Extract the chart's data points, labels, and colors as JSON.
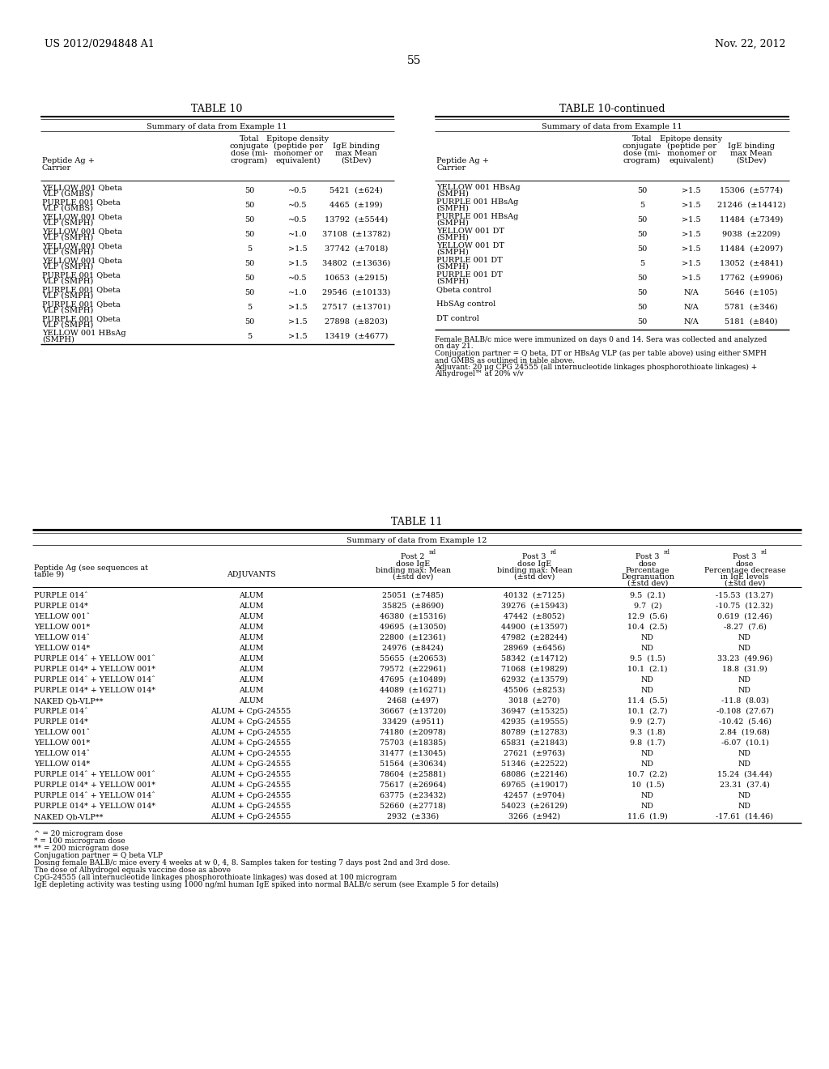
{
  "header_left": "US 2012/0294848 A1",
  "header_right": "Nov. 22, 2012",
  "page_number": "55",
  "table10_title": "TABLE 10",
  "table10cont_title": "TABLE 10-continued",
  "table10_subtitle": "Summary of data from Example 11",
  "table10cont_subtitle": "Summary of data from Example 11",
  "table11_title": "TABLE 11",
  "table11_subtitle": "Summary of data from Example 12",
  "table10_col_headers": [
    [
      "Peptide Ag +",
      "Carrier"
    ],
    [
      "Total",
      "conjugate",
      "dose (mi-",
      "crogram)"
    ],
    [
      "Epitope density",
      "(peptide per",
      "monomer or",
      "equivalent)"
    ],
    [
      "IgE binding",
      "max Mean",
      "(StDev)"
    ]
  ],
  "table10_rows": [
    [
      "YELLOW 001 Qbeta",
      "VLP (GMBS)",
      "50",
      "~0.5",
      "5421  (±624)"
    ],
    [
      "PURPLE 001 Qbeta",
      "VLP (GMBS)",
      "50",
      "~0.5",
      "4465  (±199)"
    ],
    [
      "YELLOW 001 Qbeta",
      "VLP (SMPH)",
      "50",
      "~0.5",
      "13792  (±5544)"
    ],
    [
      "YELLOW 001 Qbeta",
      "VLP (SMPH)",
      "50",
      "~1.0",
      "37108  (±13782)"
    ],
    [
      "YELLOW 001 Qbeta",
      "VLP (SMPH)",
      "5",
      ">1.5",
      "37742  (±7018)"
    ],
    [
      "YELLOW 001 Qbeta",
      "VLP (SMPH)",
      "50",
      ">1.5",
      "34802  (±13636)"
    ],
    [
      "PURPLE 001 Qbeta",
      "VLP (SMPH)",
      "50",
      "~0.5",
      "10653  (±2915)"
    ],
    [
      "PURPLE 001 Qbeta",
      "VLP (SMPH)",
      "50",
      "~1.0",
      "29546  (±10133)"
    ],
    [
      "PURPLE 001 Qbeta",
      "VLP (SMPH)",
      "5",
      ">1.5",
      "27517  (±13701)"
    ],
    [
      "PURPLE 001 Qbeta",
      "VLP (SMPH)",
      "50",
      ">1.5",
      "27898  (±8203)"
    ],
    [
      "YELLOW 001 HBsAg",
      "(SMPH)",
      "5",
      ">1.5",
      "13419  (±4677)"
    ]
  ],
  "table10cont_rows": [
    [
      "YELLOW 001 HBsAg",
      "(SMPH)",
      "50",
      ">1.5",
      "15306  (±5774)"
    ],
    [
      "PURPLE 001 HBsAg",
      "(SMPH)",
      "5",
      ">1.5",
      "21246  (±14412)"
    ],
    [
      "PURPLE 001 HBsAg",
      "(SMPH)",
      "50",
      ">1.5",
      "11484  (±7349)"
    ],
    [
      "YELLOW 001 DT",
      "(SMPH)",
      "50",
      ">1.5",
      "9038  (±2209)"
    ],
    [
      "YELLOW 001 DT",
      "(SMPH)",
      "50",
      ">1.5",
      "11484  (±2097)"
    ],
    [
      "PURPLE 001 DT",
      "(SMPH)",
      "5",
      ">1.5",
      "13052  (±4841)"
    ],
    [
      "PURPLE 001 DT",
      "(SMPH)",
      "50",
      ">1.5",
      "17762  (±9906)"
    ],
    [
      "Qbeta control",
      "",
      "50",
      "N/A",
      "5646  (±105)"
    ],
    [
      "HbSAg control",
      "",
      "50",
      "N/A",
      "5781  (±346)"
    ],
    [
      "DT control",
      "",
      "50",
      "N/A",
      "5181  (±840)"
    ]
  ],
  "table10_footnote": [
    "Female BALB/c mice were immunized on days 0 and 14. Sera was collected and analyzed",
    "on day 21.",
    "Conjugation partner = Q beta, DT or HBsAg VLP (as per table above) using either SMPH",
    "and GMBS as outlined in table above.",
    "Adjuvant: 20 μg CPG 24555 (all internucleotide linkages phosphorothioate linkages) +",
    "Alhydrogel™ at 20% v/v"
  ],
  "table11_col_headers": [
    [
      "Peptide Ag (see sequences at",
      "table 9)"
    ],
    [
      "ADJUVANTS"
    ],
    [
      "Post 2",
      "nd",
      " dose IgE",
      "binding max: Mean",
      "(±std dev)"
    ],
    [
      "Post 3",
      "rd",
      " dose IgE",
      "binding max: Mean",
      "(±std dev)"
    ],
    [
      "Post 3",
      "rd",
      " dose",
      "Percentage",
      "Degranuation",
      "(±std dev)"
    ],
    [
      "Post 3",
      "rd",
      " dose",
      "Percentage decrease",
      "in IgE levels",
      "(±std dev)"
    ]
  ],
  "table11_rows": [
    [
      "PURPLE 014ˆ",
      "ALUM",
      "25051  (±7485)",
      "40132  (±7125)",
      "9.5  (2.1)",
      "-15.53  (13.27)"
    ],
    [
      "PURPLE 014*",
      "ALUM",
      "35825  (±8690)",
      "39276  (±15943)",
      "9.7  (2)",
      "-10.75  (12.32)"
    ],
    [
      "YELLOW 001ˆ",
      "ALUM",
      "46380  (±15316)",
      "47442  (±8052)",
      "12.9  (5.6)",
      "0.619  (12.46)"
    ],
    [
      "YELLOW 001*",
      "ALUM",
      "49695  (±13050)",
      "44900  (±13597)",
      "10.4  (2.5)",
      "-8.27  (7.6)"
    ],
    [
      "YELLOW 014ˆ",
      "ALUM",
      "22800  (±12361)",
      "47982  (±28244)",
      "ND",
      "ND"
    ],
    [
      "YELLOW 014*",
      "ALUM",
      "24976  (±8424)",
      "28969  (±6456)",
      "ND",
      "ND"
    ],
    [
      "PURPLE 014ˆ + YELLOW 001ˆ",
      "ALUM",
      "55655  (±20653)",
      "58342  (±14712)",
      "9.5  (1.5)",
      "33.23  (49.96)"
    ],
    [
      "PURPLE 014* + YELLOW 001*",
      "ALUM",
      "79572  (±22961)",
      "71068  (±19829)",
      "10.1  (2.1)",
      "18.8  (31.9)"
    ],
    [
      "PURPLE 014ˆ + YELLOW 014ˆ",
      "ALUM",
      "47695  (±10489)",
      "62932  (±13579)",
      "ND",
      "ND"
    ],
    [
      "PURPLE 014* + YELLOW 014*",
      "ALUM",
      "44089  (±16271)",
      "45506  (±8253)",
      "ND",
      "ND"
    ],
    [
      "NAKED Qb-VLP**",
      "ALUM",
      "2468  (±497)",
      "3018  (±270)",
      "11.4  (5.5)",
      "-11.8  (8.03)"
    ],
    [
      "PURPLE 014ˆ",
      "ALUM + CpG-24555",
      "36667  (±13720)",
      "36947  (±15325)",
      "10.1  (2.7)",
      "-0.108  (27.67)"
    ],
    [
      "PURPLE 014*",
      "ALUM + CpG-24555",
      "33429  (±9511)",
      "42935  (±19555)",
      "9.9  (2.7)",
      "-10.42  (5.46)"
    ],
    [
      "YELLOW 001ˆ",
      "ALUM + CpG-24555",
      "74180  (±20978)",
      "80789  (±12783)",
      "9.3  (1.8)",
      "2.84  (19.68)"
    ],
    [
      "YELLOW 001*",
      "ALUM + CpG-24555",
      "75703  (±18385)",
      "65831  (±21843)",
      "9.8  (1.7)",
      "-6.07  (10.1)"
    ],
    [
      "YELLOW 014ˆ",
      "ALUM + CpG-24555",
      "31477  (±13045)",
      "27621  (±9763)",
      "ND",
      "ND"
    ],
    [
      "YELLOW 014*",
      "ALUM + CpG-24555",
      "51564  (±30634)",
      "51346  (±22522)",
      "ND",
      "ND"
    ],
    [
      "PURPLE 014ˆ + YELLOW 001ˆ",
      "ALUM + CpG-24555",
      "78604  (±25881)",
      "68086  (±22146)",
      "10.7  (2.2)",
      "15.24  (34.44)"
    ],
    [
      "PURPLE 014* + YELLOW 001*",
      "ALUM + CpG-24555",
      "75617  (±26964)",
      "69765  (±19017)",
      "10  (1.5)",
      "23.31  (37.4)"
    ],
    [
      "PURPLE 014ˆ + YELLOW 014ˆ",
      "ALUM + CpG-24555",
      "63775  (±23432)",
      "42457  (±9704)",
      "ND",
      "ND"
    ],
    [
      "PURPLE 014* + YELLOW 014*",
      "ALUM + CpG-24555",
      "52660  (±27718)",
      "54023  (±26129)",
      "ND",
      "ND"
    ],
    [
      "NAKED Qb-VLP**",
      "ALUM + CpG-24555",
      "2932  (±336)",
      "3266  (±942)",
      "11.6  (1.9)",
      "-17.61  (14.46)"
    ]
  ],
  "table11_footnotes": [
    "^ = 20 microgram dose",
    "* = 100 microgram dose",
    "** = 200 microgram dose",
    "Conjugation partner = Q beta VLP",
    "Dosing female BALB/c mice every 4 weeks at w 0, 4, 8. Samples taken for testing 7 days post 2nd and 3rd dose.",
    "The dose of Alhydrogel equals vaccine dose as above",
    "CpG-24555 (all internucleotide linkages phosphorothioate linkages) was dosed at 100 microgram",
    "IgE depleting activity was testing using 1000 ng/ml human IgE spiked into normal BALB/c serum (see Example 5 for details)"
  ]
}
